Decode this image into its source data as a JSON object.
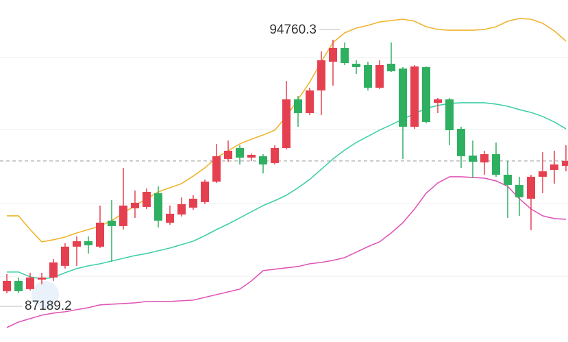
{
  "chart_data": {
    "type": "candlestick",
    "ylim": [
      85814,
      95757
    ],
    "up_color": "#e5404f",
    "down_color": "#2fb061",
    "high_label": 94760.3,
    "low_label": 87189.2,
    "last_price": 91076,
    "open": [
      87291,
      87590,
      87351,
      87630,
      87689,
      88028,
      88586,
      88746,
      88586,
      89343,
      89183,
      89701,
      89741,
      90140,
      89283,
      89522,
      89721,
      89881,
      90478,
      91136,
      91454,
      91175,
      91215,
      91016,
      91454,
      92869,
      92470,
      93128,
      93964,
      94363,
      93904,
      93865,
      93207,
      93904,
      93765,
      92072,
      93805,
      92769,
      92869,
      92012,
      91235,
      91036,
      91275,
      90677,
      90379,
      89980,
      90618,
      90817,
      90936
    ],
    "high": [
      87789,
      87689,
      87829,
      87829,
      88227,
      88686,
      88885,
      88885,
      89781,
      89940,
      90877,
      90219,
      90279,
      90339,
      89781,
      90020,
      90080,
      90538,
      91574,
      91673,
      91534,
      91295,
      91275,
      91534,
      93406,
      92968,
      93207,
      94263,
      94602,
      94522,
      94004,
      93964,
      94004,
      94522,
      93805,
      93865,
      93825,
      92909,
      92909,
      92072,
      91673,
      91375,
      91614,
      91076,
      90618,
      90677,
      91335,
      91375,
      91534
    ],
    "low": [
      87231,
      87231,
      87311,
      87490,
      87590,
      87949,
      88028,
      88386,
      88546,
      88148,
      89084,
      89422,
      89681,
      89143,
      89223,
      89462,
      89661,
      89821,
      90438,
      91056,
      90976,
      91076,
      90717,
      90976,
      91414,
      92072,
      92410,
      92410,
      93267,
      93865,
      93606,
      93128,
      93167,
      93665,
      91136,
      92012,
      92171,
      92470,
      91534,
      90877,
      90578,
      90677,
      90618,
      89422,
      89482,
      89064,
      90140,
      90418,
      90777
    ],
    "close": [
      87590,
      87291,
      87689,
      87689,
      88128,
      88586,
      88746,
      88626,
      89283,
      89183,
      89781,
      89861,
      90179,
      89343,
      89542,
      89821,
      89980,
      90478,
      91215,
      91375,
      91175,
      91255,
      90976,
      91454,
      92869,
      92470,
      93128,
      94004,
      94363,
      93924,
      93805,
      93207,
      93865,
      93685,
      92072,
      93825,
      92211,
      92869,
      91972,
      91215,
      91056,
      91275,
      90677,
      90379,
      90020,
      90618,
      90777,
      90976,
      91076
    ],
    "bands": [
      {
        "color": "#f0b32a",
        "values": [
          89482,
          89482,
          89084,
          88726,
          88786,
          88865,
          88985,
          89084,
          89183,
          89343,
          89562,
          89781,
          89980,
          90179,
          90299,
          90418,
          90638,
          90877,
          91175,
          91375,
          91574,
          91713,
          91833,
          91972,
          92371,
          92869,
          93366,
          93964,
          94522,
          94801,
          94940,
          95020,
          95119,
          95159,
          95199,
          95139,
          94980,
          94900,
          94880,
          94880,
          94880,
          94900,
          94980,
          95139,
          95219,
          95199,
          95080,
          94861,
          94562
        ]
      },
      {
        "color": "#3ecfa8",
        "values": [
          87849,
          87849,
          87709,
          87649,
          87689,
          87829,
          87949,
          88028,
          88088,
          88168,
          88247,
          88327,
          88386,
          88466,
          88546,
          88646,
          88746,
          88905,
          89084,
          89244,
          89422,
          89602,
          89781,
          89921,
          90080,
          90299,
          90538,
          90837,
          91136,
          91395,
          91614,
          91793,
          91972,
          92132,
          92291,
          92450,
          92610,
          92689,
          92749,
          92769,
          92769,
          92769,
          92729,
          92669,
          92570,
          92490,
          92371,
          92211,
          92012
        ]
      },
      {
        "color": "#e055b8",
        "values": [
          86235,
          86395,
          86494,
          86594,
          86654,
          86693,
          86753,
          86813,
          86893,
          86913,
          86932,
          86952,
          86992,
          86992,
          86992,
          87012,
          87032,
          87112,
          87191,
          87271,
          87351,
          87590,
          87889,
          87929,
          87969,
          88009,
          88088,
          88128,
          88188,
          88267,
          88426,
          88586,
          88726,
          88985,
          89283,
          89681,
          90140,
          90438,
          90618,
          90618,
          90598,
          90578,
          90498,
          90339,
          89980,
          89682,
          89482,
          89402,
          89382
        ]
      }
    ]
  }
}
